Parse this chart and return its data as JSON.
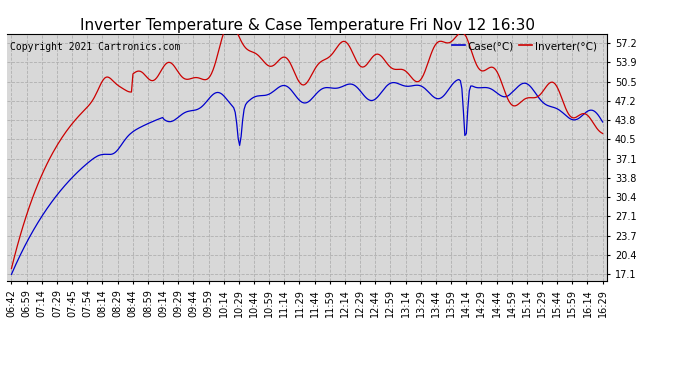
{
  "title": "Inverter Temperature & Case Temperature Fri Nov 12 16:30",
  "copyright": "Copyright 2021 Cartronics.com",
  "legend_case": "Case(°C)",
  "legend_inverter": "Inverter(°C)",
  "y_ticks": [
    17.1,
    20.4,
    23.7,
    27.1,
    30.4,
    33.8,
    37.1,
    40.5,
    43.8,
    47.2,
    50.5,
    53.9,
    57.2
  ],
  "ylim": [
    15.8,
    58.8
  ],
  "background_color": "#ffffff",
  "plot_bg_color": "#d8d8d8",
  "grid_color": "#b0b0b0",
  "case_color": "#0000cc",
  "inverter_color": "#cc0000",
  "title_fontsize": 11,
  "tick_fontsize": 7,
  "copyright_fontsize": 7,
  "x_tick_labels": [
    "06:42",
    "06:59",
    "07:14",
    "07:29",
    "07:45",
    "07:54",
    "08:14",
    "08:29",
    "08:44",
    "08:59",
    "09:14",
    "09:29",
    "09:44",
    "09:59",
    "10:14",
    "10:29",
    "10:44",
    "10:59",
    "11:14",
    "11:29",
    "11:44",
    "11:59",
    "12:14",
    "12:29",
    "12:44",
    "12:59",
    "13:14",
    "13:29",
    "13:44",
    "13:59",
    "14:14",
    "14:29",
    "14:44",
    "14:59",
    "15:14",
    "15:29",
    "15:44",
    "15:59",
    "16:14",
    "16:29"
  ]
}
